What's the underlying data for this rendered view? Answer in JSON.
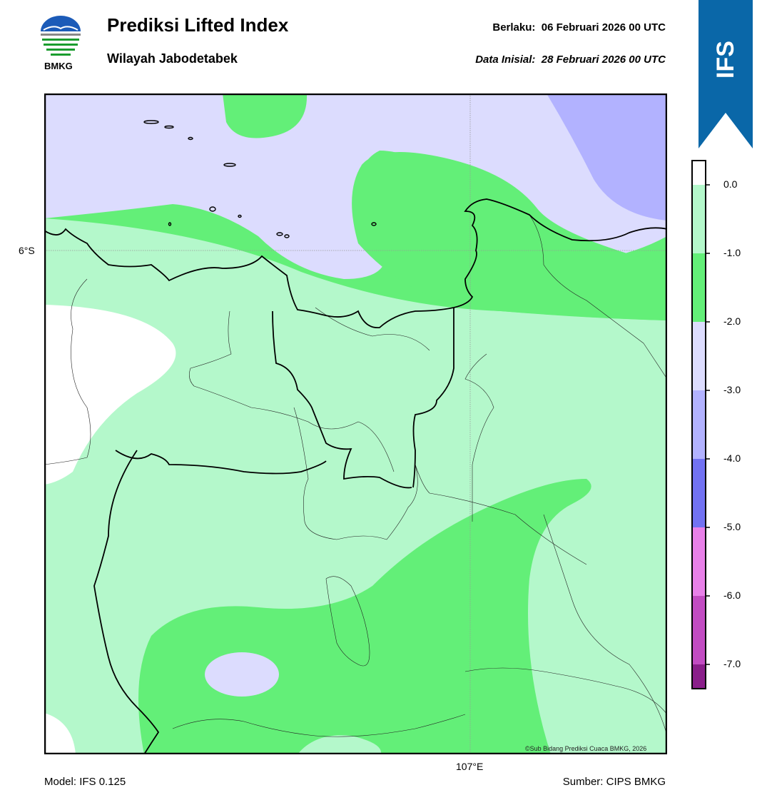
{
  "header": {
    "title": "Prediksi Lifted Index",
    "subtitle": "Wilayah Jabodetabek",
    "valid_label": "Berlaku:",
    "valid_value": "06 Februari 2026 00 UTC",
    "init_label": "Data Inisial:",
    "init_value": "28 Februari 2026 00 UTC",
    "logo_text": "BMKG"
  },
  "badge": {
    "text": "IFS",
    "color": "#0a67a8"
  },
  "map": {
    "lat_label": "6°S",
    "lon_label": "107°E",
    "credit": "©Sub Bidang Prediksi Cuaca BMKG, 2026"
  },
  "colorbar": {
    "ticks": [
      "0.0",
      "-1.0",
      "-2.0",
      "-3.0",
      "-4.0",
      "-5.0",
      "-6.0",
      "-7.0"
    ],
    "bands": [
      {
        "range": "above 0.0",
        "color": "#ffffff"
      },
      {
        "range": "0 to -1",
        "color": "#b4f8cb"
      },
      {
        "range": "-1 to -2",
        "color": "#63ef78"
      },
      {
        "range": "-2 to -3",
        "color": "#dcdcfe"
      },
      {
        "range": "-3 to -4",
        "color": "#b2b2ff"
      },
      {
        "range": "-4 to -5",
        "color": "#7272f2"
      },
      {
        "range": "-5 to -6",
        "color": "#e880e8"
      },
      {
        "range": "-6 to -7",
        "color": "#c24cc2"
      },
      {
        "range": "below -7",
        "color": "#8a1f8a"
      }
    ]
  },
  "footer": {
    "model": "Model: IFS 0.125",
    "source": "Sumber: CIPS BMKG"
  }
}
